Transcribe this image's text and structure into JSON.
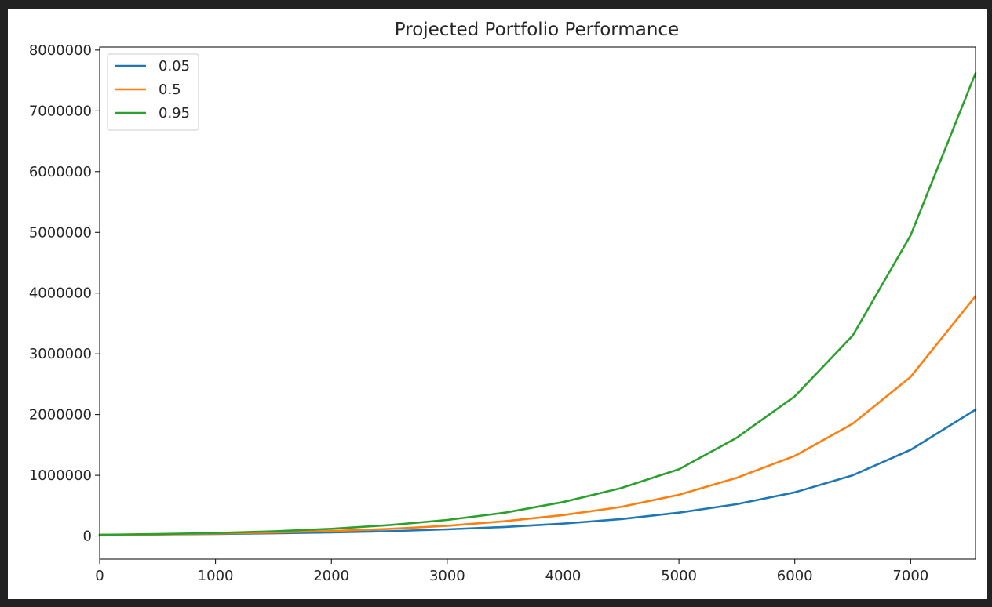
{
  "chart_data": {
    "type": "line",
    "title": "Projected Portfolio Performance",
    "xlabel": "",
    "ylabel": "",
    "xlim": [
      0,
      7560
    ],
    "ylim": [
      -380000,
      8050000
    ],
    "grid": false,
    "legend_placement": "top-left",
    "x_ticks": [
      0,
      1000,
      2000,
      3000,
      4000,
      5000,
      6000,
      7000
    ],
    "x_tick_labels": [
      "0",
      "1000",
      "2000",
      "3000",
      "4000",
      "5000",
      "6000",
      "7000"
    ],
    "y_ticks": [
      0,
      1000000,
      2000000,
      3000000,
      4000000,
      5000000,
      6000000,
      7000000,
      8000000
    ],
    "y_tick_labels": [
      "0",
      "1000000",
      "2000000",
      "3000000",
      "4000000",
      "5000000",
      "6000000",
      "7000000",
      "8000000"
    ],
    "x": [
      0,
      500,
      1000,
      1500,
      2000,
      2500,
      3000,
      3500,
      4000,
      4500,
      5000,
      5500,
      6000,
      6500,
      7000,
      7560
    ],
    "series": [
      {
        "name": "0.05",
        "color": "#1f77b4",
        "values": [
          20000,
          26000,
          34000,
          45000,
          60000,
          80000,
          110000,
          150000,
          205000,
          280000,
          385000,
          525000,
          720000,
          1000000,
          1420000,
          2080000
        ]
      },
      {
        "name": "0.5",
        "color": "#ff7f0e",
        "values": [
          20000,
          28000,
          40000,
          57000,
          82000,
          118000,
          170000,
          245000,
          345000,
          480000,
          680000,
          960000,
          1320000,
          1850000,
          2620000,
          3950000
        ]
      },
      {
        "name": "0.95",
        "color": "#2ca02c",
        "values": [
          20000,
          32000,
          50000,
          78000,
          120000,
          180000,
          265000,
          385000,
          560000,
          790000,
          1100000,
          1620000,
          2300000,
          3300000,
          4950000,
          7620000
        ]
      }
    ]
  }
}
